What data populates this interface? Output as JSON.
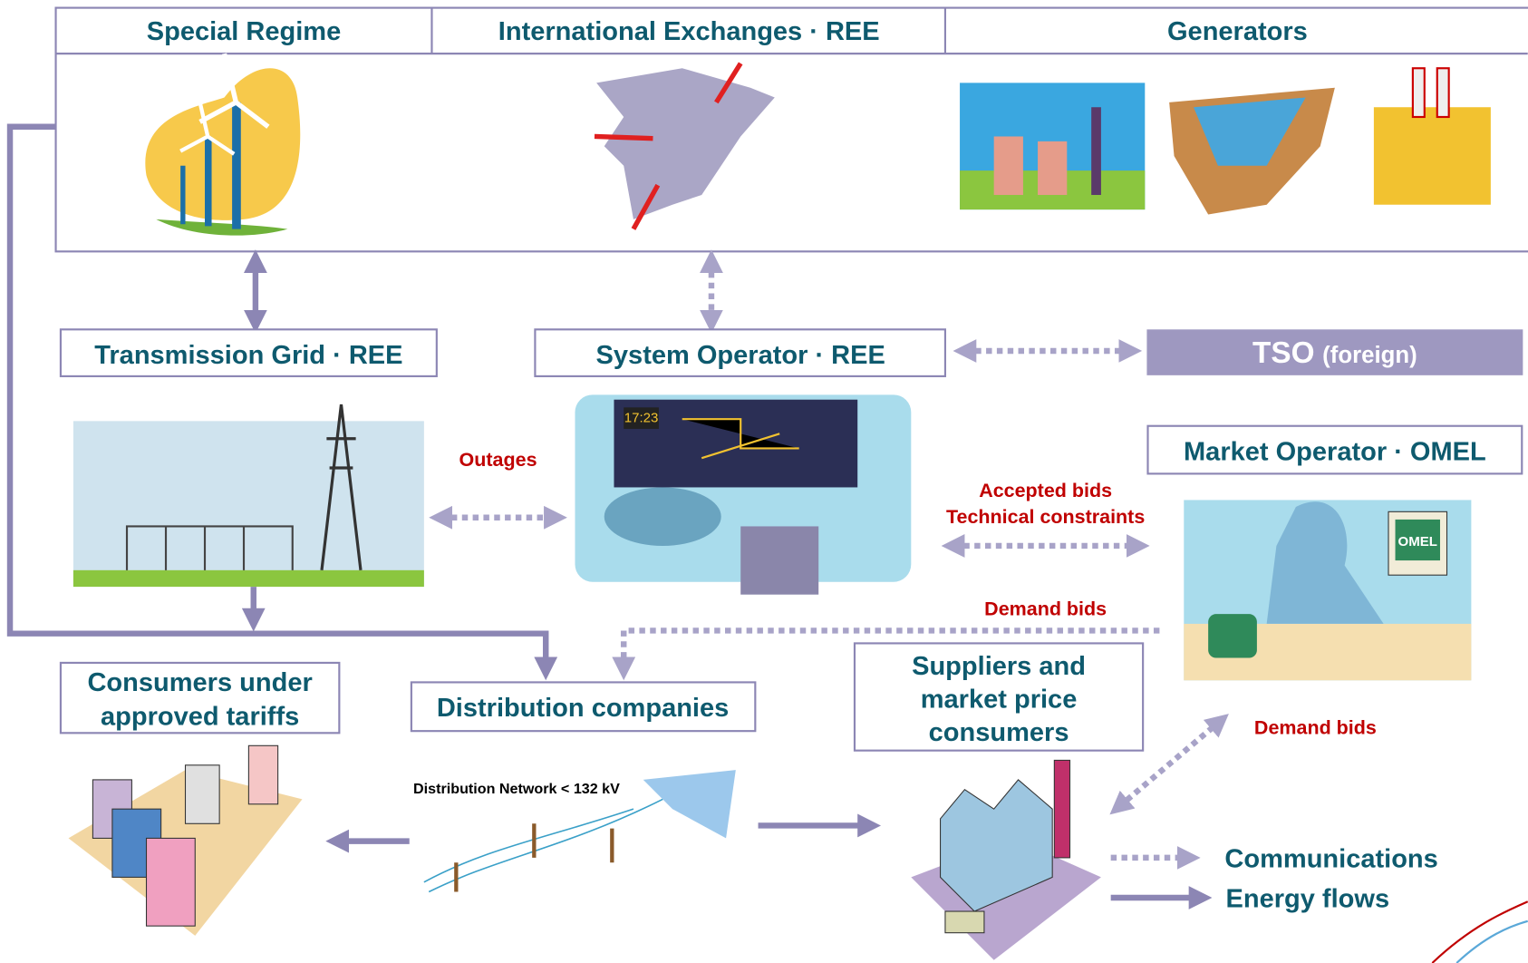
{
  "header": {
    "cells": [
      "Special Regime",
      "International Exchanges · REE",
      "Generators"
    ]
  },
  "nodes": [
    {
      "label": "Transmission Grid · REE"
    },
    {
      "label": "System Operator · REE"
    },
    {
      "label": "TSO",
      "qualifier": "(foreign)"
    },
    {
      "label": "Market Operator · OMEL"
    },
    {
      "lines": [
        "Consumers under",
        "approved tariffs"
      ]
    },
    {
      "label": "Distribution companies"
    },
    {
      "lines": [
        "Suppliers and",
        "market price",
        "consumers"
      ]
    }
  ],
  "edges": [
    {
      "label": "Outages"
    },
    {
      "label": "Accepted bids"
    },
    {
      "label": "Technical constraints"
    },
    {
      "label": "Demand bids"
    },
    {
      "label": "Demand bids"
    },
    {
      "label": "Distribution Network < 132 kV"
    }
  ],
  "illustrations": {
    "clock": "17:23",
    "monitor": "OMEL"
  },
  "legend": [
    "Communications",
    "Energy flows"
  ]
}
